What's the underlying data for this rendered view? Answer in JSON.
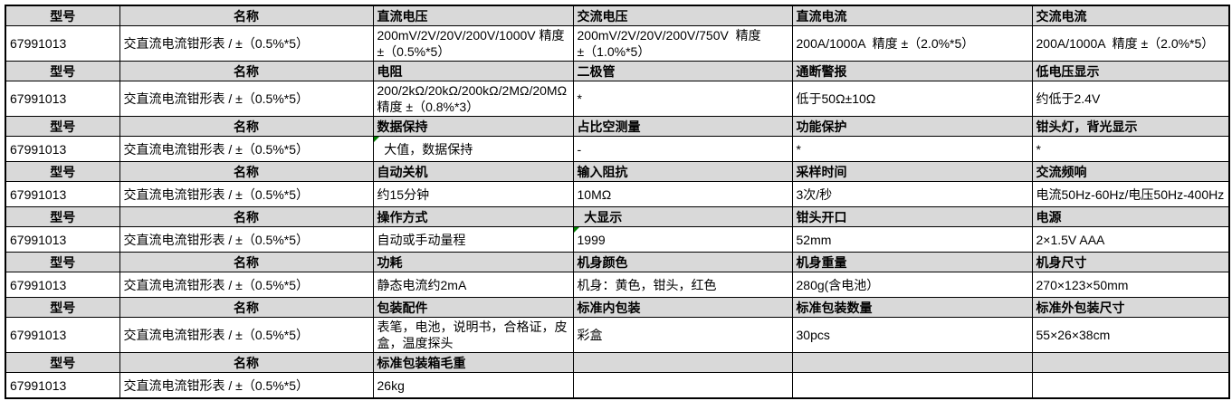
{
  "colors": {
    "header_bg": "#d9d9d9",
    "border": "#000000",
    "error_indicator": "#008000"
  },
  "table": {
    "error_indicator_cells": [
      [
        5,
        2
      ],
      [
        9,
        3
      ]
    ],
    "rows": [
      {
        "kind": "header",
        "cells": [
          "型号",
          "名称",
          "直流电压",
          "交流电压",
          "直流电流",
          "交流电流"
        ]
      },
      {
        "kind": "data",
        "cells": [
          "67991013",
          "交直流电流钳形表 / ±（0.5%*5）",
          "200mV/2V/20V/200V/1000V 精度 ±（0.5%*5）",
          "200mV/2V/20V/200V/750V  精度 ±（1.0%*5）",
          "200A/1000A  精度 ±（2.0%*5）",
          "200A/1000A  精度 ±（2.0%*5）"
        ]
      },
      {
        "kind": "header",
        "cells": [
          "型号",
          "名称",
          "电阻",
          "二极管",
          "通断警报",
          "低电压显示"
        ]
      },
      {
        "kind": "data",
        "cells": [
          "67991013",
          "交直流电流钳形表 / ±（0.5%*5）",
          "200/2kΩ/20kΩ/200kΩ/2MΩ/20MΩ 精度 ±（0.8%*3）",
          "*",
          "低于50Ω±10Ω",
          "约低于2.4V"
        ]
      },
      {
        "kind": "header",
        "cells": [
          "型号",
          "名称",
          "数据保持",
          "占比空测量",
          "功能保护",
          "钳头灯，背光显示"
        ]
      },
      {
        "kind": "data",
        "cells": [
          "67991013",
          "交直流电流钳形表 / ±（0.5%*5）",
          "  大值，数据保持",
          "-",
          "*",
          "*"
        ]
      },
      {
        "kind": "header",
        "cells": [
          "型号",
          "名称",
          "自动关机",
          "输入阻抗",
          "采样时间",
          "交流频响"
        ]
      },
      {
        "kind": "data",
        "cells": [
          "67991013",
          "交直流电流钳形表 / ±（0.5%*5）",
          "约15分钟",
          "10MΩ",
          "3次/秒",
          "电流50Hz-60Hz/电压50Hz-400Hz"
        ]
      },
      {
        "kind": "header",
        "cells": [
          "型号",
          "名称",
          "操作方式",
          "  大显示",
          "钳头开口",
          "电源"
        ]
      },
      {
        "kind": "data",
        "cells": [
          "67991013",
          "交直流电流钳形表 / ±（0.5%*5）",
          "自动或手动量程",
          "1999",
          "52mm",
          "2×1.5V AAA"
        ]
      },
      {
        "kind": "header",
        "cells": [
          "型号",
          "名称",
          "功耗",
          "机身颜色",
          "机身重量",
          "机身尺寸"
        ]
      },
      {
        "kind": "data",
        "cells": [
          "67991013",
          "交直流电流钳形表 / ±（0.5%*5）",
          "静态电流约2mA",
          "机身：黄色，钳头，红色",
          "280g(含电池）",
          "270×123×50mm"
        ]
      },
      {
        "kind": "header",
        "cells": [
          "型号",
          "名称",
          "包装配件",
          "标准内包装",
          "标准包装数量",
          "标准外包装尺寸"
        ]
      },
      {
        "kind": "data",
        "cells": [
          "67991013",
          "交直流电流钳形表 / ±（0.5%*5）",
          "表笔，电池，说明书，合格证，皮盒，温度探头",
          "彩盒",
          "30pcs",
          "55×26×38cm"
        ]
      },
      {
        "kind": "header",
        "cells": [
          "型号",
          "名称",
          "标准包装箱毛重",
          "",
          "",
          ""
        ]
      },
      {
        "kind": "data",
        "cells": [
          "67991013",
          "交直流电流钳形表 / ±（0.5%*5）",
          "26kg",
          "",
          "",
          ""
        ]
      }
    ]
  }
}
